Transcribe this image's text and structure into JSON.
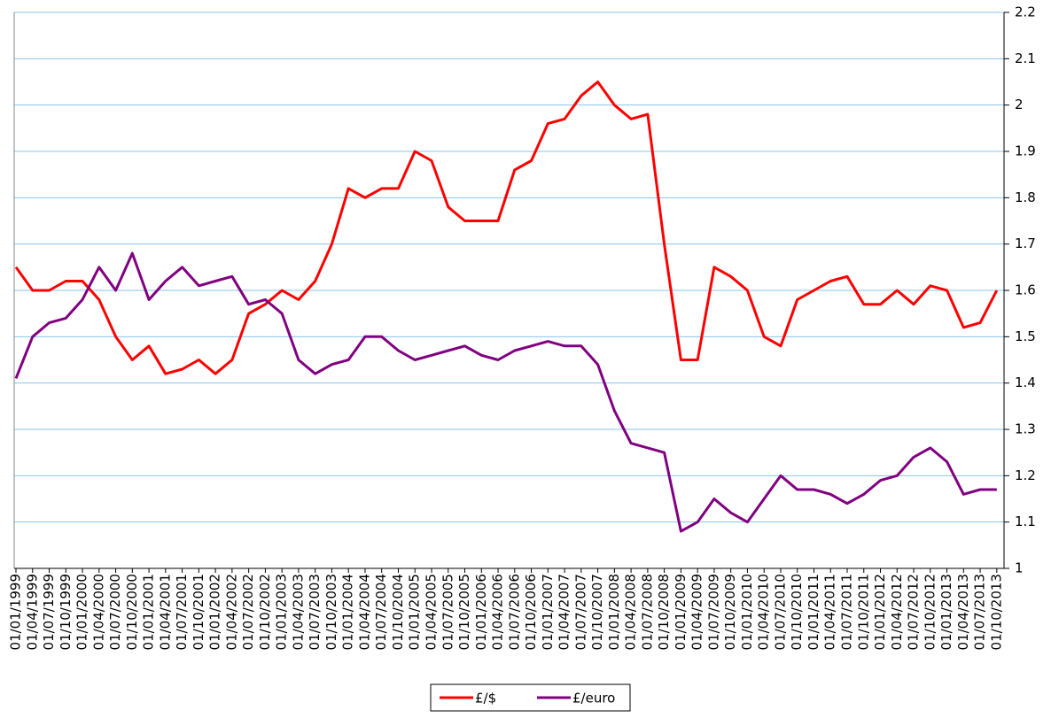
{
  "chart_data": {
    "type": "line",
    "categories": [
      "01/01/1999",
      "01/04/1999",
      "01/07/1999",
      "01/10/1999",
      "01/01/2000",
      "01/04/2000",
      "01/07/2000",
      "01/10/2000",
      "01/01/2001",
      "01/04/2001",
      "01/07/2001",
      "01/10/2001",
      "01/01/2002",
      "01/04/2002",
      "01/07/2002",
      "01/10/2002",
      "01/01/2003",
      "01/04/2003",
      "01/07/2003",
      "01/10/2003",
      "01/01/2004",
      "01/04/2004",
      "01/07/2004",
      "01/10/2004",
      "01/01/2005",
      "01/04/2005",
      "01/07/2005",
      "01/10/2005",
      "01/01/2006",
      "01/04/2006",
      "01/07/2006",
      "01/10/2006",
      "01/01/2007",
      "01/04/2007",
      "01/07/2007",
      "01/10/2007",
      "01/01/2008",
      "01/04/2008",
      "01/07/2008",
      "01/10/2008",
      "01/01/2009",
      "01/04/2009",
      "01/07/2009",
      "01/10/2009",
      "01/01/2010",
      "01/04/2010",
      "01/07/2010",
      "01/10/2010",
      "01/01/2011",
      "01/04/2011",
      "01/07/2011",
      "01/10/2011",
      "01/01/2012",
      "01/04/2012",
      "01/07/2012",
      "01/10/2012",
      "01/01/2013",
      "01/04/2013",
      "01/07/2013",
      "01/10/2013"
    ],
    "series": [
      {
        "name": "£/$",
        "color": "#ff0000",
        "values": [
          1.65,
          1.6,
          1.6,
          1.62,
          1.62,
          1.58,
          1.5,
          1.45,
          1.48,
          1.42,
          1.43,
          1.45,
          1.42,
          1.45,
          1.55,
          1.57,
          1.6,
          1.58,
          1.62,
          1.7,
          1.82,
          1.8,
          1.82,
          1.82,
          1.9,
          1.88,
          1.78,
          1.75,
          1.75,
          1.75,
          1.86,
          1.88,
          1.96,
          1.97,
          2.02,
          2.05,
          2.0,
          1.97,
          1.98,
          1.7,
          1.45,
          1.45,
          1.65,
          1.63,
          1.6,
          1.5,
          1.48,
          1.58,
          1.6,
          1.62,
          1.63,
          1.57,
          1.57,
          1.6,
          1.57,
          1.61,
          1.6,
          1.52,
          1.53,
          1.6
        ]
      },
      {
        "name": "£/euro",
        "color": "#800080",
        "values": [
          1.41,
          1.5,
          1.53,
          1.54,
          1.58,
          1.65,
          1.6,
          1.68,
          1.58,
          1.62,
          1.65,
          1.61,
          1.62,
          1.63,
          1.57,
          1.58,
          1.55,
          1.45,
          1.42,
          1.44,
          1.45,
          1.5,
          1.5,
          1.47,
          1.45,
          1.46,
          1.47,
          1.48,
          1.46,
          1.45,
          1.47,
          1.48,
          1.49,
          1.48,
          1.48,
          1.44,
          1.34,
          1.27,
          1.26,
          1.25,
          1.08,
          1.1,
          1.15,
          1.12,
          1.1,
          1.15,
          1.2,
          1.17,
          1.17,
          1.16,
          1.14,
          1.16,
          1.19,
          1.2,
          1.24,
          1.26,
          1.23,
          1.16,
          1.17,
          1.17
        ]
      }
    ],
    "ylim": [
      1,
      2.2
    ],
    "yticks": [
      1,
      1.1,
      1.2,
      1.3,
      1.4,
      1.5,
      1.6,
      1.7,
      1.8,
      1.9,
      2,
      2.1,
      2.2
    ],
    "grid": true,
    "legend": "bottom"
  }
}
